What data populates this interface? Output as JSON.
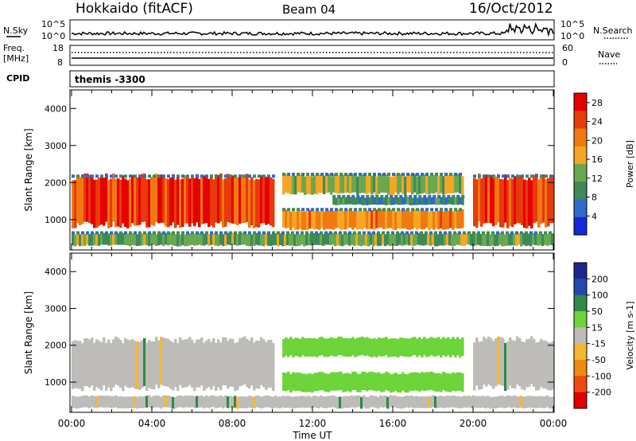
{
  "header": {
    "site": "Hokkaido (fitACF)",
    "beam": "Beam 04",
    "date": "16/Oct/2012"
  },
  "strips": {
    "nsky_label": "N.Sky",
    "nsky_ticks": [
      "10^5",
      "10^0"
    ],
    "nsearch_label": "N.Search",
    "nsearch_ticks": [
      "10^5",
      "10^0"
    ],
    "freq_label": "Freq.",
    "freq_unit": "[MHz]",
    "freq_ticks": [
      "18",
      "8"
    ],
    "nave_label": "Nave",
    "nave_ticks": [
      "60",
      "0"
    ],
    "cpid_label": "CPID",
    "cpid_value": "themis -3300"
  },
  "colors": {
    "power": [
      "#1428d8",
      "#2e6acc",
      "#3d8a58",
      "#6aa84f",
      "#f5a623",
      "#f07a10",
      "#e83a0a",
      "#e60000"
    ],
    "velocity": [
      "#e00000",
      "#f04a10",
      "#f08a10",
      "#f5b830",
      "#bdbcb8",
      "#6dd43a",
      "#2e8a46",
      "#2448b0",
      "#1c2890"
    ]
  },
  "chart_data": [
    {
      "type": "heatmap",
      "title": "Power",
      "ylabel": "Slant Range [km]",
      "xlabel": "",
      "yticks": [
        "1000",
        "2000",
        "3000",
        "4000"
      ],
      "ylim": [
        180,
        4500
      ],
      "xlim": [
        0,
        24
      ],
      "colorbar_label": "Power [dB]",
      "colorbar_ticks": [
        "4",
        "8",
        "12",
        "16",
        "20",
        "24",
        "28"
      ],
      "colorbar_range": [
        0,
        30
      ],
      "bands": [
        {
          "name": "near ground scatter",
          "x": [
            0,
            24
          ],
          "range": [
            300,
            620
          ],
          "level": 12
        },
        {
          "name": "morning ionospheric echo",
          "x": [
            0,
            10
          ],
          "range": [
            850,
            2150
          ],
          "level": 26
        },
        {
          "name": "upper echo band",
          "x": [
            10.5,
            19.5
          ],
          "range": [
            1700,
            2200
          ],
          "level": 14
        },
        {
          "name": "mid band",
          "x": [
            13,
            19.5
          ],
          "range": [
            1400,
            1600
          ],
          "level": 8
        },
        {
          "name": "lower echo band",
          "x": [
            10.5,
            19.5
          ],
          "range": [
            750,
            1250
          ],
          "level": 20
        },
        {
          "name": "evening ionospheric echo",
          "x": [
            20,
            24
          ],
          "range": [
            850,
            2150
          ],
          "level": 26
        }
      ]
    },
    {
      "type": "heatmap",
      "title": "Velocity",
      "ylabel": "Slant Range [km]",
      "xlabel": "Time UT",
      "yticks": [
        "1000",
        "2000",
        "3000",
        "4000"
      ],
      "xticks": [
        "00:00",
        "04:00",
        "08:00",
        "12:00",
        "16:00",
        "20:00",
        "00:00"
      ],
      "ylim": [
        180,
        4500
      ],
      "xlim": [
        0,
        24
      ],
      "colorbar_label": "Velocity [m s-1]",
      "colorbar_ticks": [
        "200",
        "100",
        "50",
        "15",
        "-15",
        "-50",
        "-100",
        "-200"
      ],
      "colorbar_range": [
        -250,
        250
      ],
      "bands": [
        {
          "name": "near ground scatter",
          "x": [
            0,
            24
          ],
          "range": [
            300,
            620
          ],
          "velocity": 0
        },
        {
          "name": "morning echo",
          "x": [
            0,
            10
          ],
          "range": [
            850,
            2150
          ],
          "velocity": 0
        },
        {
          "name": "upper band",
          "x": [
            10.5,
            19.5
          ],
          "range": [
            1700,
            2200
          ],
          "velocity": 40
        },
        {
          "name": "lower band",
          "x": [
            10.5,
            19.5
          ],
          "range": [
            750,
            1250
          ],
          "velocity": 40
        },
        {
          "name": "evening echo",
          "x": [
            20,
            24
          ],
          "range": [
            850,
            2150
          ],
          "velocity": 0
        }
      ]
    }
  ]
}
